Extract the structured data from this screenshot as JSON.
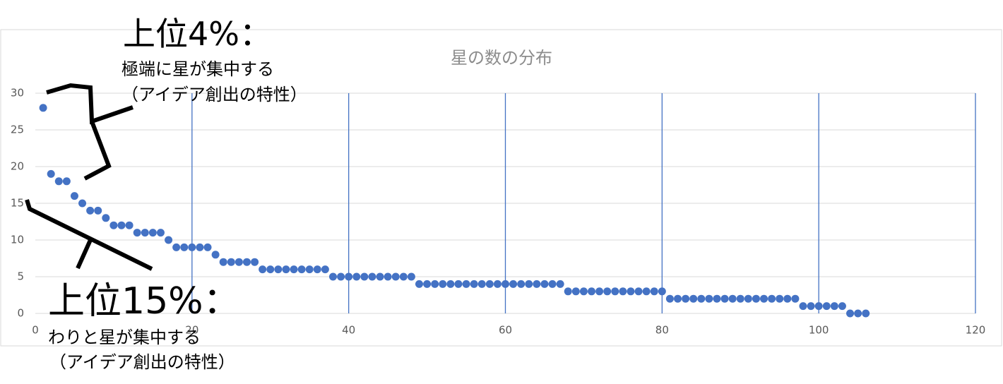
{
  "chart_data": {
    "type": "scatter",
    "title": "星の数の分布",
    "x": [
      1,
      2,
      3,
      4,
      5,
      6,
      7,
      8,
      9,
      10,
      11,
      12,
      13,
      14,
      15,
      16,
      17,
      18,
      19,
      20,
      21,
      22,
      23,
      24,
      25,
      26,
      27,
      28,
      29,
      30,
      31,
      32,
      33,
      34,
      35,
      36,
      37,
      38,
      39,
      40,
      41,
      42,
      43,
      44,
      45,
      46,
      47,
      48,
      49,
      50,
      51,
      52,
      53,
      54,
      55,
      56,
      57,
      58,
      59,
      60,
      61,
      62,
      63,
      64,
      65,
      66,
      67,
      68,
      69,
      70,
      71,
      72,
      73,
      74,
      75,
      76,
      77,
      78,
      79,
      80,
      81,
      82,
      83,
      84,
      85,
      86,
      87,
      88,
      89,
      90,
      91,
      92,
      93,
      94,
      95,
      96,
      97,
      98,
      99,
      100,
      101,
      102,
      103,
      104,
      105,
      106
    ],
    "series": [
      {
        "color": "#4472c4",
        "values": [
          28,
          19,
          18,
          18,
          16,
          15,
          14,
          14,
          13,
          12,
          12,
          12,
          11,
          11,
          11,
          11,
          10,
          9,
          9,
          9,
          9,
          9,
          8,
          7,
          7,
          7,
          7,
          7,
          6,
          6,
          6,
          6,
          6,
          6,
          6,
          6,
          6,
          5,
          5,
          5,
          5,
          5,
          5,
          5,
          5,
          5,
          5,
          5,
          4,
          4,
          4,
          4,
          4,
          4,
          4,
          4,
          4,
          4,
          4,
          4,
          4,
          4,
          4,
          4,
          4,
          4,
          4,
          3,
          3,
          3,
          3,
          3,
          3,
          3,
          3,
          3,
          3,
          3,
          3,
          3,
          2,
          2,
          2,
          2,
          2,
          2,
          2,
          2,
          2,
          2,
          2,
          2,
          2,
          2,
          2,
          2,
          2,
          1,
          1,
          1,
          1,
          1,
          1,
          0,
          0,
          0
        ]
      }
    ],
    "xlim": [
      0,
      120
    ],
    "xticks": [
      0,
      20,
      40,
      60,
      80,
      100,
      120
    ],
    "ylim": [
      0,
      30
    ],
    "yticks": [
      0,
      5,
      10,
      15,
      20,
      25,
      30
    ],
    "grid": true,
    "annotations": [
      "上位4%：",
      "極端に星が集中する",
      "（アイデア創出の特性）",
      "上位15%：",
      "わりと星が集中する",
      "（アイデア創出の特性）"
    ]
  }
}
